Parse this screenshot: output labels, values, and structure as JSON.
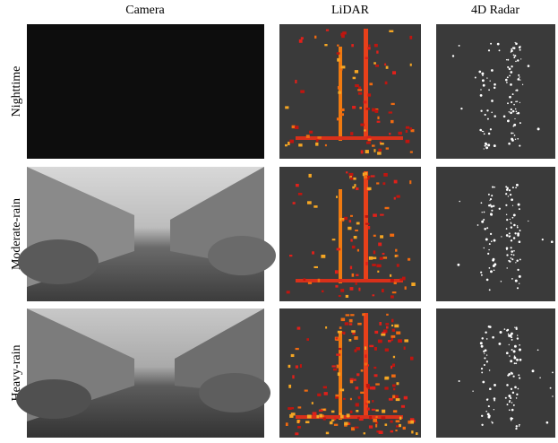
{
  "columns": [
    "Camera",
    "LiDAR",
    "4D Radar"
  ],
  "rows": [
    "Nighttime",
    "Moderate-rain",
    "Heavy-rain"
  ]
}
